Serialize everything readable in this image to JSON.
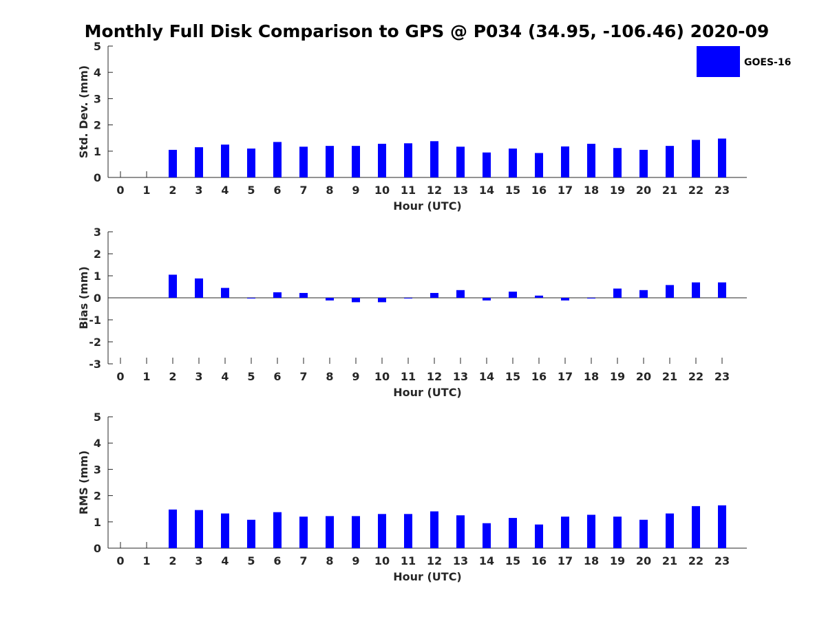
{
  "chart_data": {
    "title": "Monthly Full Disk Comparison to GPS @ P034 (34.95, -106.46) 2020-09",
    "legend": {
      "label": "GOES-16",
      "color": "#0000ff",
      "placement": "top-right"
    },
    "panels": [
      {
        "type": "bar",
        "ylabel": "Std. Dev. (mm)",
        "xlabel": "Hour (UTC)",
        "ylim": [
          0,
          5
        ],
        "yticks": [
          "0",
          "1",
          "2",
          "3",
          "4",
          "5"
        ],
        "categories": [
          "0",
          "1",
          "2",
          "3",
          "4",
          "5",
          "6",
          "7",
          "8",
          "9",
          "10",
          "11",
          "12",
          "13",
          "14",
          "15",
          "16",
          "17",
          "18",
          "19",
          "20",
          "21",
          "22",
          "23"
        ],
        "values": [
          null,
          null,
          1.05,
          1.15,
          1.25,
          1.1,
          1.35,
          1.17,
          1.2,
          1.2,
          1.28,
          1.3,
          1.38,
          1.17,
          0.95,
          1.1,
          0.93,
          1.18,
          1.28,
          1.12,
          1.05,
          1.2,
          1.43,
          1.48
        ]
      },
      {
        "type": "bar",
        "ylabel": "Bias (mm)",
        "xlabel": "Hour (UTC)",
        "ylim": [
          -3,
          3
        ],
        "yticks": [
          "-3",
          "-2",
          "-1",
          "0",
          "1",
          "2",
          "3"
        ],
        "categories": [
          "0",
          "1",
          "2",
          "3",
          "4",
          "5",
          "6",
          "7",
          "8",
          "9",
          "10",
          "11",
          "12",
          "13",
          "14",
          "15",
          "16",
          "17",
          "18",
          "19",
          "20",
          "21",
          "22",
          "23"
        ],
        "values": [
          null,
          null,
          1.05,
          0.88,
          0.45,
          0.0,
          0.25,
          0.22,
          -0.12,
          -0.2,
          -0.2,
          -0.02,
          0.22,
          0.35,
          -0.12,
          0.28,
          0.1,
          -0.12,
          0.0,
          0.42,
          0.35,
          0.58,
          0.7,
          0.7
        ]
      },
      {
        "type": "bar",
        "ylabel": "RMS (mm)",
        "xlabel": "Hour (UTC)",
        "ylim": [
          0,
          5
        ],
        "yticks": [
          "0",
          "1",
          "2",
          "3",
          "4",
          "5"
        ],
        "categories": [
          "0",
          "1",
          "2",
          "3",
          "4",
          "5",
          "6",
          "7",
          "8",
          "9",
          "10",
          "11",
          "12",
          "13",
          "14",
          "15",
          "16",
          "17",
          "18",
          "19",
          "20",
          "21",
          "22",
          "23"
        ],
        "values": [
          null,
          null,
          1.47,
          1.45,
          1.32,
          1.08,
          1.37,
          1.2,
          1.22,
          1.22,
          1.3,
          1.3,
          1.4,
          1.25,
          0.95,
          1.15,
          0.9,
          1.2,
          1.27,
          1.2,
          1.08,
          1.32,
          1.6,
          1.63
        ]
      }
    ]
  }
}
